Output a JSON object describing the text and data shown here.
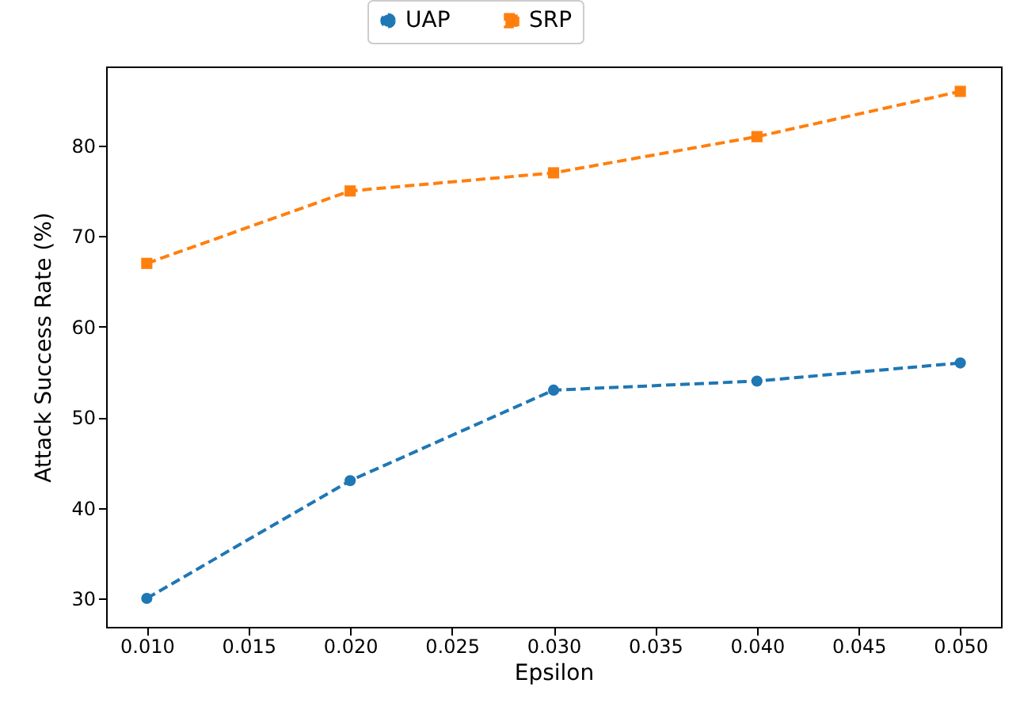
{
  "chart_data": {
    "type": "line",
    "xlabel": "Epsilon",
    "ylabel": "Attack Success Rate (%)",
    "x": [
      0.01,
      0.02,
      0.03,
      0.04,
      0.05
    ],
    "series": [
      {
        "name": "UAP",
        "color": "#1f77b4",
        "marker": "circle",
        "values": [
          30,
          43,
          53,
          54,
          56
        ]
      },
      {
        "name": "SRP",
        "color": "#ff7f0e",
        "marker": "square",
        "values": [
          67,
          75,
          77,
          81,
          86
        ]
      }
    ],
    "xlim": [
      0.008,
      0.052
    ],
    "xticks": [
      {
        "value": 0.01,
        "label": "0.010"
      },
      {
        "value": 0.015,
        "label": "0.015"
      },
      {
        "value": 0.02,
        "label": "0.020"
      },
      {
        "value": 0.025,
        "label": "0.025"
      },
      {
        "value": 0.03,
        "label": "0.030"
      },
      {
        "value": 0.035,
        "label": "0.035"
      },
      {
        "value": 0.04,
        "label": "0.040"
      },
      {
        "value": 0.045,
        "label": "0.045"
      },
      {
        "value": 0.05,
        "label": "0.050"
      }
    ],
    "ylim": [
      26.85,
      88.75
    ],
    "yticks": [
      30,
      40,
      50,
      60,
      70,
      80
    ],
    "legend": "top",
    "line_style": "dashed",
    "grid": false
  }
}
